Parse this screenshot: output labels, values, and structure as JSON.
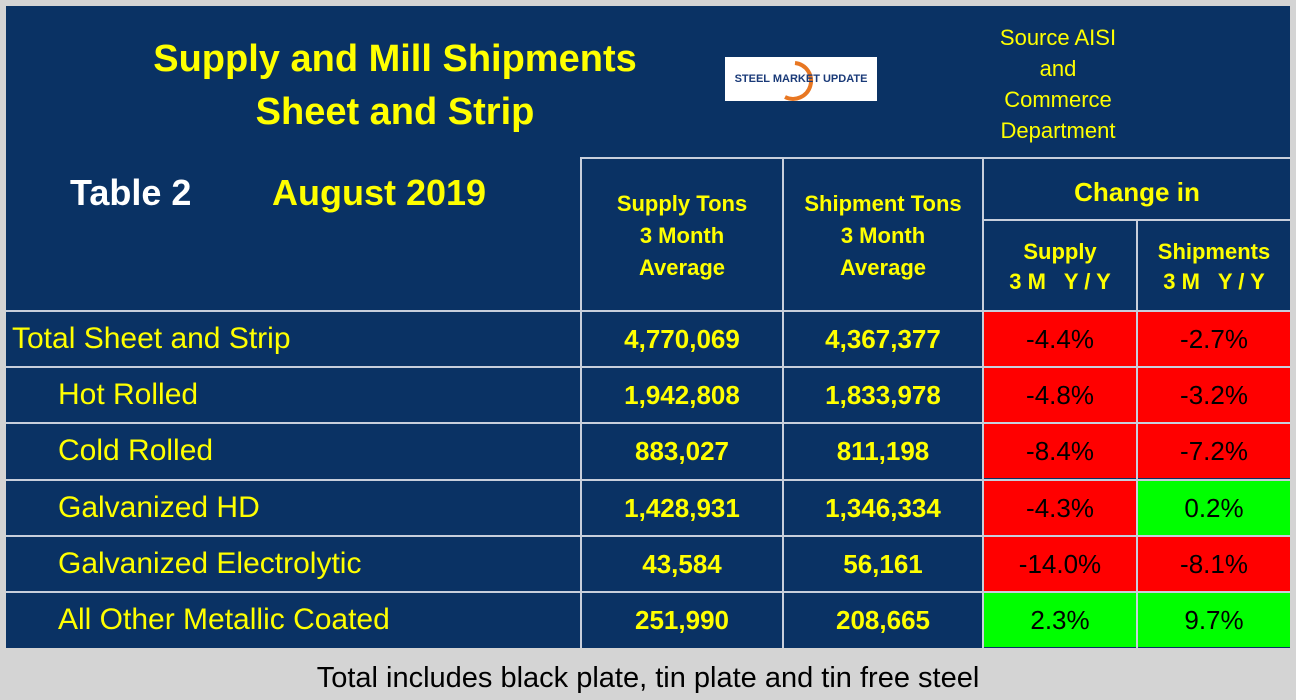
{
  "header": {
    "title": [
      "Supply and Mill Shipments",
      "Sheet and Strip"
    ],
    "table_label": "Table 2",
    "date": "August 2019",
    "source": [
      "Source AISI",
      "and",
      "Commerce",
      "Department"
    ],
    "logo": "STEEL MARKET UPDATE"
  },
  "table": {
    "columns": [
      [
        "Supply Tons",
        "3 Month",
        "Average"
      ],
      [
        "Shipment Tons",
        "3 Month",
        "Average"
      ]
    ],
    "change_heading": "Change in",
    "change_columns": [
      [
        "Supply",
        "3 M   Y / Y"
      ],
      [
        "Shipments",
        "3 M   Y / Y"
      ]
    ],
    "rows": [
      {
        "label": "Total Sheet and Strip",
        "supply": "4,770,069",
        "shipments": "4,367,377",
        "supply_change": "-4.4%",
        "shipments_change": "-2.7%",
        "colors": [
          "#ff0000",
          "#ff0000"
        ]
      },
      {
        "label": "Hot Rolled",
        "supply": "1,942,808",
        "shipments": "1,833,978",
        "supply_change": "-4.8%",
        "shipments_change": "-3.2%",
        "colors": [
          "#ff0000",
          "#ff0000"
        ]
      },
      {
        "label": "Cold Rolled",
        "supply": "883,027",
        "shipments": "811,198",
        "supply_change": "-8.4%",
        "shipments_change": "-7.2%",
        "colors": [
          "#ff0000",
          "#ff0000"
        ]
      },
      {
        "label": "Galvanized HD",
        "supply": "1,428,931",
        "shipments": "1,346,334",
        "supply_change": "-4.3%",
        "shipments_change": "0.2%",
        "colors": [
          "#ff0000",
          "#00ff00"
        ]
      },
      {
        "label": "Galvanized Electrolytic",
        "supply": "43,584",
        "shipments": "56,161",
        "supply_change": "-14.0%",
        "shipments_change": "-8.1%",
        "colors": [
          "#ff0000",
          "#ff0000"
        ]
      },
      {
        "label": "All Other Metallic Coated",
        "supply": "251,990",
        "shipments": "208,665",
        "supply_change": "2.3%",
        "shipments_change": "9.7%",
        "colors": [
          "#00ff00",
          "#00ff00"
        ]
      }
    ]
  },
  "footer": "Total includes black plate, tin plate and tin free steel"
}
